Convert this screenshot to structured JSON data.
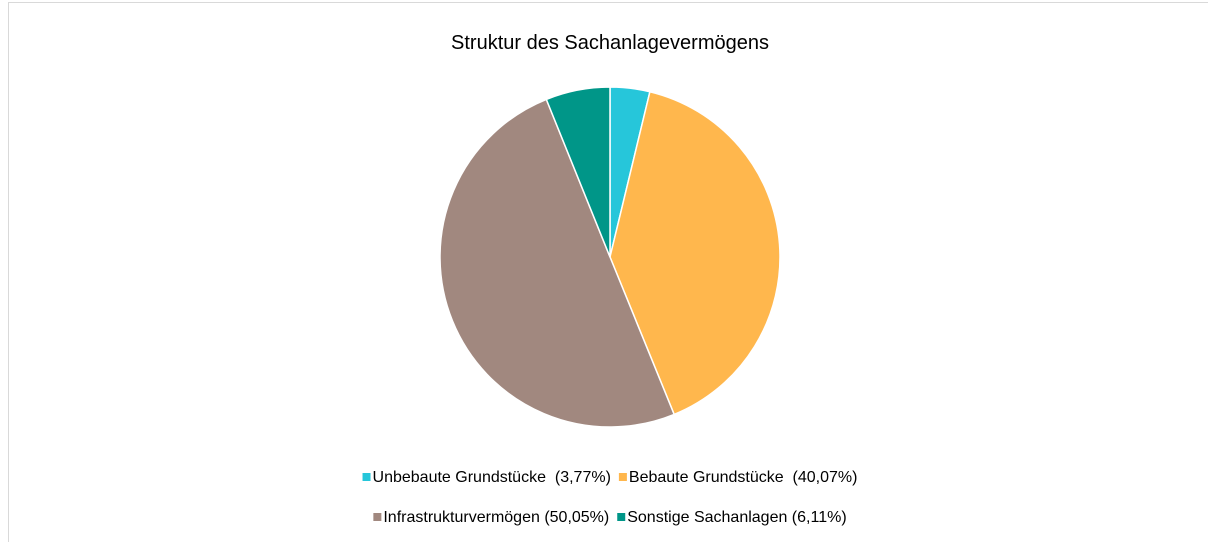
{
  "chart_data": {
    "type": "pie",
    "title": "Struktur des Sachanlagevermögens",
    "categories": [
      "Unbebaute Grundstücke  (3,77%)",
      "Bebaute Grundstücke  (40,07%)",
      "Infrastrukturvermögen (50,05%)",
      "Sonstige Sachanlagen (6,11%)"
    ],
    "values": [
      3.77,
      40.07,
      50.05,
      6.11
    ],
    "colors": [
      "#26c6da",
      "#ffb74d",
      "#a1887f",
      "#009688"
    ],
    "legend": "bottom"
  }
}
